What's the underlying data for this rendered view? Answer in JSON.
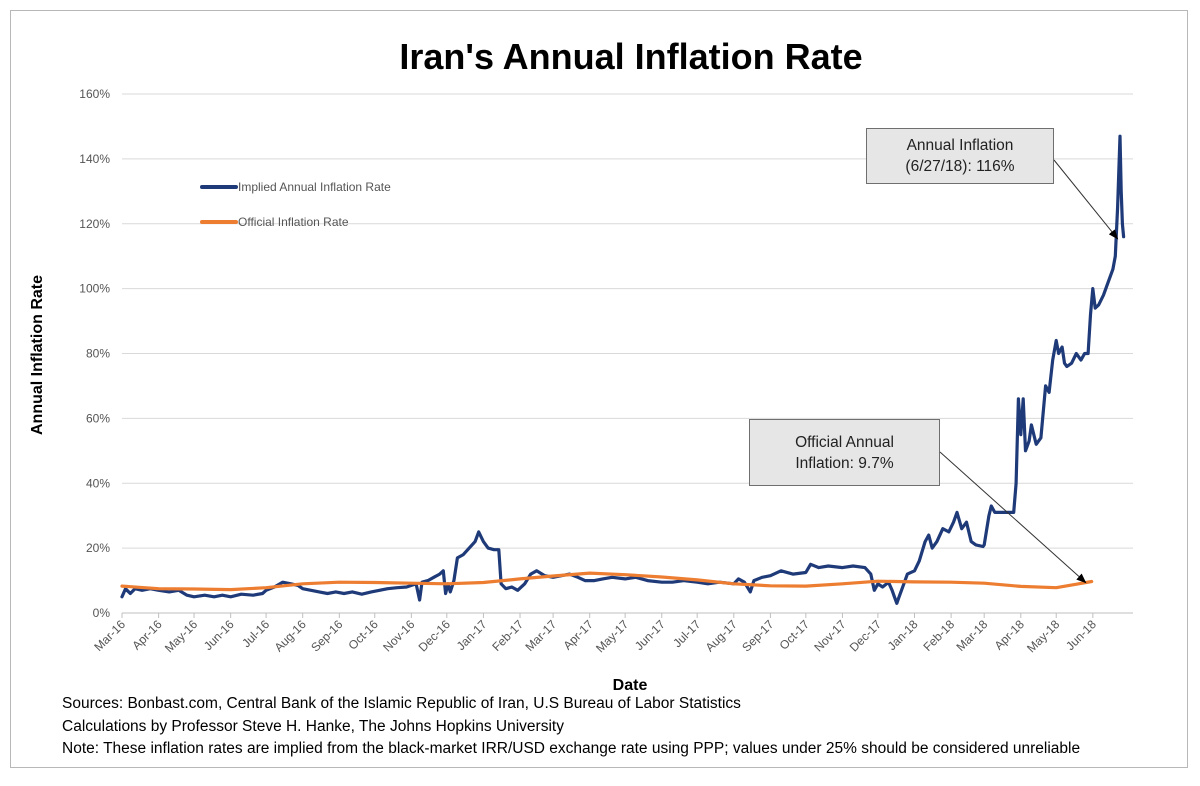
{
  "chart_data": {
    "type": "line",
    "title": "Iran's Annual Inflation Rate",
    "xlabel": "Date",
    "ylabel": "Annual Inflation Rate",
    "ylim": [
      0,
      160
    ],
    "y_ticks": [
      0,
      20,
      40,
      60,
      80,
      100,
      120,
      140,
      160
    ],
    "y_tick_labels": [
      "0%",
      "20%",
      "40%",
      "60%",
      "80%",
      "100%",
      "120%",
      "140%",
      "160%"
    ],
    "x_ticks": [
      "2016-03-01",
      "2016-04-01",
      "2016-05-01",
      "2016-06-01",
      "2016-07-01",
      "2016-08-01",
      "2016-09-01",
      "2016-10-01",
      "2016-11-01",
      "2016-12-01",
      "2017-01-01",
      "2017-02-01",
      "2017-03-01",
      "2017-04-01",
      "2017-05-01",
      "2017-06-01",
      "2017-07-01",
      "2017-08-01",
      "2017-09-01",
      "2017-10-01",
      "2017-11-01",
      "2017-12-01",
      "2018-01-01",
      "2018-02-01",
      "2018-03-01",
      "2018-04-01",
      "2018-05-01",
      "2018-06-01"
    ],
    "x_tick_labels": [
      "Mar-16",
      "Apr-16",
      "May-16",
      "Jun-16",
      "Jul-16",
      "Aug-16",
      "Sep-16",
      "Oct-16",
      "Nov-16",
      "Dec-16",
      "Jan-17",
      "Feb-17",
      "Mar-17",
      "Apr-17",
      "May-17",
      "Jun-17",
      "Jul-17",
      "Aug-17",
      "Sep-17",
      "Oct-17",
      "Nov-17",
      "Dec-17",
      "Jan-18",
      "Feb-18",
      "Mar-18",
      "Apr-18",
      "May-18",
      "Jun-18"
    ],
    "xlim": [
      "2016-03-01",
      "2018-07-05"
    ],
    "grid": true,
    "legend": "upper-left",
    "series": [
      {
        "name": "Implied Annual Inflation Rate",
        "color": "#1f3a78",
        "points": [
          [
            "2016-03-01",
            5.0
          ],
          [
            "2016-03-04",
            7.5
          ],
          [
            "2016-03-08",
            6.0
          ],
          [
            "2016-03-12",
            7.5
          ],
          [
            "2016-03-18",
            7.0
          ],
          [
            "2016-03-25",
            7.5
          ],
          [
            "2016-04-01",
            7.0
          ],
          [
            "2016-04-10",
            6.5
          ],
          [
            "2016-04-18",
            7.0
          ],
          [
            "2016-04-25",
            5.5
          ],
          [
            "2016-05-01",
            5.0
          ],
          [
            "2016-05-10",
            5.5
          ],
          [
            "2016-05-18",
            5.0
          ],
          [
            "2016-05-25",
            5.5
          ],
          [
            "2016-06-01",
            5.0
          ],
          [
            "2016-06-10",
            5.8
          ],
          [
            "2016-06-20",
            5.5
          ],
          [
            "2016-06-28",
            6.0
          ],
          [
            "2016-07-01",
            7.0
          ],
          [
            "2016-07-08",
            8.0
          ],
          [
            "2016-07-15",
            9.5
          ],
          [
            "2016-07-22",
            9.0
          ],
          [
            "2016-07-28",
            8.5
          ],
          [
            "2016-08-01",
            7.5
          ],
          [
            "2016-08-08",
            7.0
          ],
          [
            "2016-08-15",
            6.5
          ],
          [
            "2016-08-22",
            6.0
          ],
          [
            "2016-08-29",
            6.5
          ],
          [
            "2016-09-05",
            6.0
          ],
          [
            "2016-09-12",
            6.5
          ],
          [
            "2016-09-20",
            5.8
          ],
          [
            "2016-09-28",
            6.5
          ],
          [
            "2016-10-05",
            7.0
          ],
          [
            "2016-10-12",
            7.5
          ],
          [
            "2016-10-20",
            7.8
          ],
          [
            "2016-10-28",
            8.0
          ],
          [
            "2016-11-01",
            8.5
          ],
          [
            "2016-11-05",
            9.0
          ],
          [
            "2016-11-08",
            4.0
          ],
          [
            "2016-11-10",
            9.5
          ],
          [
            "2016-11-15",
            10.0
          ],
          [
            "2016-11-20",
            11.0
          ],
          [
            "2016-11-25",
            12.0
          ],
          [
            "2016-11-28",
            13.0
          ],
          [
            "2016-11-30",
            6.0
          ],
          [
            "2016-12-02",
            9.0
          ],
          [
            "2016-12-04",
            6.5
          ],
          [
            "2016-12-07",
            10.0
          ],
          [
            "2016-12-10",
            17.0
          ],
          [
            "2016-12-15",
            18.0
          ],
          [
            "2016-12-20",
            20.0
          ],
          [
            "2016-12-25",
            22.0
          ],
          [
            "2016-12-28",
            25.0
          ],
          [
            "2017-01-01",
            22.0
          ],
          [
            "2017-01-05",
            20.0
          ],
          [
            "2017-01-10",
            19.5
          ],
          [
            "2017-01-14",
            19.5
          ],
          [
            "2017-01-16",
            9.0
          ],
          [
            "2017-01-20",
            7.5
          ],
          [
            "2017-01-25",
            8.0
          ],
          [
            "2017-01-30",
            7.0
          ],
          [
            "2017-02-05",
            9.0
          ],
          [
            "2017-02-10",
            12.0
          ],
          [
            "2017-02-15",
            13.0
          ],
          [
            "2017-02-22",
            11.5
          ],
          [
            "2017-03-01",
            11.0
          ],
          [
            "2017-03-08",
            11.5
          ],
          [
            "2017-03-15",
            12.0
          ],
          [
            "2017-03-22",
            11.0
          ],
          [
            "2017-03-28",
            10.0
          ],
          [
            "2017-04-05",
            10.0
          ],
          [
            "2017-04-12",
            10.5
          ],
          [
            "2017-04-20",
            11.0
          ],
          [
            "2017-05-01",
            10.5
          ],
          [
            "2017-05-10",
            11.0
          ],
          [
            "2017-05-20",
            10.0
          ],
          [
            "2017-06-01",
            9.5
          ],
          [
            "2017-06-10",
            9.5
          ],
          [
            "2017-06-20",
            10.0
          ],
          [
            "2017-07-01",
            9.5
          ],
          [
            "2017-07-10",
            9.0
          ],
          [
            "2017-07-20",
            9.5
          ],
          [
            "2017-08-01",
            9.0
          ],
          [
            "2017-08-05",
            10.5
          ],
          [
            "2017-08-10",
            9.5
          ],
          [
            "2017-08-15",
            6.5
          ],
          [
            "2017-08-18",
            10.0
          ],
          [
            "2017-08-25",
            11.0
          ],
          [
            "2017-09-01",
            11.5
          ],
          [
            "2017-09-10",
            13.0
          ],
          [
            "2017-09-20",
            12.0
          ],
          [
            "2017-10-01",
            12.5
          ],
          [
            "2017-10-05",
            15.0
          ],
          [
            "2017-10-12",
            14.0
          ],
          [
            "2017-10-20",
            14.5
          ],
          [
            "2017-11-01",
            14.0
          ],
          [
            "2017-11-10",
            14.5
          ],
          [
            "2017-11-20",
            14.0
          ],
          [
            "2017-11-25",
            12.0
          ],
          [
            "2017-11-28",
            7.0
          ],
          [
            "2017-12-01",
            9.0
          ],
          [
            "2017-12-05",
            8.0
          ],
          [
            "2017-12-10",
            9.5
          ],
          [
            "2017-12-13",
            7.0
          ],
          [
            "2017-12-15",
            5.0
          ],
          [
            "2017-12-17",
            3.0
          ],
          [
            "2017-12-19",
            5.0
          ],
          [
            "2017-12-22",
            8.0
          ],
          [
            "2017-12-26",
            12.0
          ],
          [
            "2018-01-01",
            13.0
          ],
          [
            "2018-01-05",
            16.0
          ],
          [
            "2018-01-10",
            22.0
          ],
          [
            "2018-01-13",
            24.0
          ],
          [
            "2018-01-16",
            20.0
          ],
          [
            "2018-01-20",
            22.0
          ],
          [
            "2018-01-25",
            26.0
          ],
          [
            "2018-01-30",
            25.0
          ],
          [
            "2018-02-03",
            28.0
          ],
          [
            "2018-02-06",
            31.0
          ],
          [
            "2018-02-10",
            26.0
          ],
          [
            "2018-02-14",
            28.0
          ],
          [
            "2018-02-18",
            22.0
          ],
          [
            "2018-02-22",
            21.0
          ],
          [
            "2018-02-28",
            20.5
          ],
          [
            "2018-03-01",
            21.0
          ],
          [
            "2018-03-05",
            30.0
          ],
          [
            "2018-03-07",
            33.0
          ],
          [
            "2018-03-10",
            31.0
          ],
          [
            "2018-03-20",
            31.0
          ],
          [
            "2018-03-26",
            31.0
          ],
          [
            "2018-03-28",
            40.0
          ],
          [
            "2018-03-30",
            66.0
          ],
          [
            "2018-04-01",
            55.0
          ],
          [
            "2018-04-03",
            66.0
          ],
          [
            "2018-04-05",
            50.0
          ],
          [
            "2018-04-08",
            53.0
          ],
          [
            "2018-04-10",
            58.0
          ],
          [
            "2018-04-14",
            52.0
          ],
          [
            "2018-04-18",
            54.0
          ],
          [
            "2018-04-22",
            70.0
          ],
          [
            "2018-04-25",
            68.0
          ],
          [
            "2018-04-28",
            78.0
          ],
          [
            "2018-05-01",
            84.0
          ],
          [
            "2018-05-03",
            80.0
          ],
          [
            "2018-05-06",
            82.0
          ],
          [
            "2018-05-08",
            77.0
          ],
          [
            "2018-05-10",
            76.0
          ],
          [
            "2018-05-14",
            77.0
          ],
          [
            "2018-05-18",
            80.0
          ],
          [
            "2018-05-22",
            78.0
          ],
          [
            "2018-05-25",
            80.0
          ],
          [
            "2018-05-28",
            80.0
          ],
          [
            "2018-05-30",
            92.0
          ],
          [
            "2018-06-01",
            100.0
          ],
          [
            "2018-06-03",
            94.0
          ],
          [
            "2018-06-06",
            95.0
          ],
          [
            "2018-06-10",
            98.0
          ],
          [
            "2018-06-14",
            102.0
          ],
          [
            "2018-06-18",
            106.0
          ],
          [
            "2018-06-20",
            110.0
          ],
          [
            "2018-06-22",
            125.0
          ],
          [
            "2018-06-24",
            147.0
          ],
          [
            "2018-06-25",
            130.0
          ],
          [
            "2018-06-26",
            120.0
          ],
          [
            "2018-06-27",
            116.0
          ]
        ]
      },
      {
        "name": "Official Inflation Rate",
        "color": "#ed7d31",
        "points": [
          [
            "2016-03-01",
            8.3
          ],
          [
            "2016-04-01",
            7.5
          ],
          [
            "2016-05-01",
            7.4
          ],
          [
            "2016-06-01",
            7.2
          ],
          [
            "2016-07-01",
            7.8
          ],
          [
            "2016-08-01",
            9.0
          ],
          [
            "2016-09-01",
            9.5
          ],
          [
            "2016-10-01",
            9.4
          ],
          [
            "2016-11-01",
            9.2
          ],
          [
            "2016-12-01",
            9.0
          ],
          [
            "2017-01-01",
            9.4
          ],
          [
            "2017-02-01",
            10.5
          ],
          [
            "2017-03-01",
            11.4
          ],
          [
            "2017-04-01",
            12.3
          ],
          [
            "2017-05-01",
            11.8
          ],
          [
            "2017-06-01",
            11.1
          ],
          [
            "2017-07-01",
            10.2
          ],
          [
            "2017-08-01",
            9.0
          ],
          [
            "2017-09-01",
            8.4
          ],
          [
            "2017-10-01",
            8.3
          ],
          [
            "2017-11-01",
            9.0
          ],
          [
            "2017-12-01",
            9.8
          ],
          [
            "2018-01-01",
            9.6
          ],
          [
            "2018-02-01",
            9.5
          ],
          [
            "2018-03-01",
            9.2
          ],
          [
            "2018-04-01",
            8.2
          ],
          [
            "2018-05-01",
            7.8
          ],
          [
            "2018-05-20",
            9.0
          ],
          [
            "2018-05-31",
            9.7
          ]
        ]
      }
    ],
    "annotations": [
      {
        "line1": "Annual Inflation",
        "line2": "(6/27/18): 116%",
        "target": [
          "2018-06-27",
          116
        ]
      },
      {
        "line1": "Official Annual",
        "line2": "Inflation: 9.7%",
        "target": [
          "2018-05-31",
          9.7
        ]
      }
    ]
  },
  "sources": {
    "line1": "Sources: Bonbast.com, Central Bank of the Islamic Republic of Iran, U.S Bureau of Labor Statistics",
    "line2": "Calculations by Professor Steve H. Hanke, The Johns Hopkins University",
    "line3": "Note: These inflation rates are implied from the black-market IRR/USD exchange rate using PPP; values under 25% should be considered unreliable"
  }
}
